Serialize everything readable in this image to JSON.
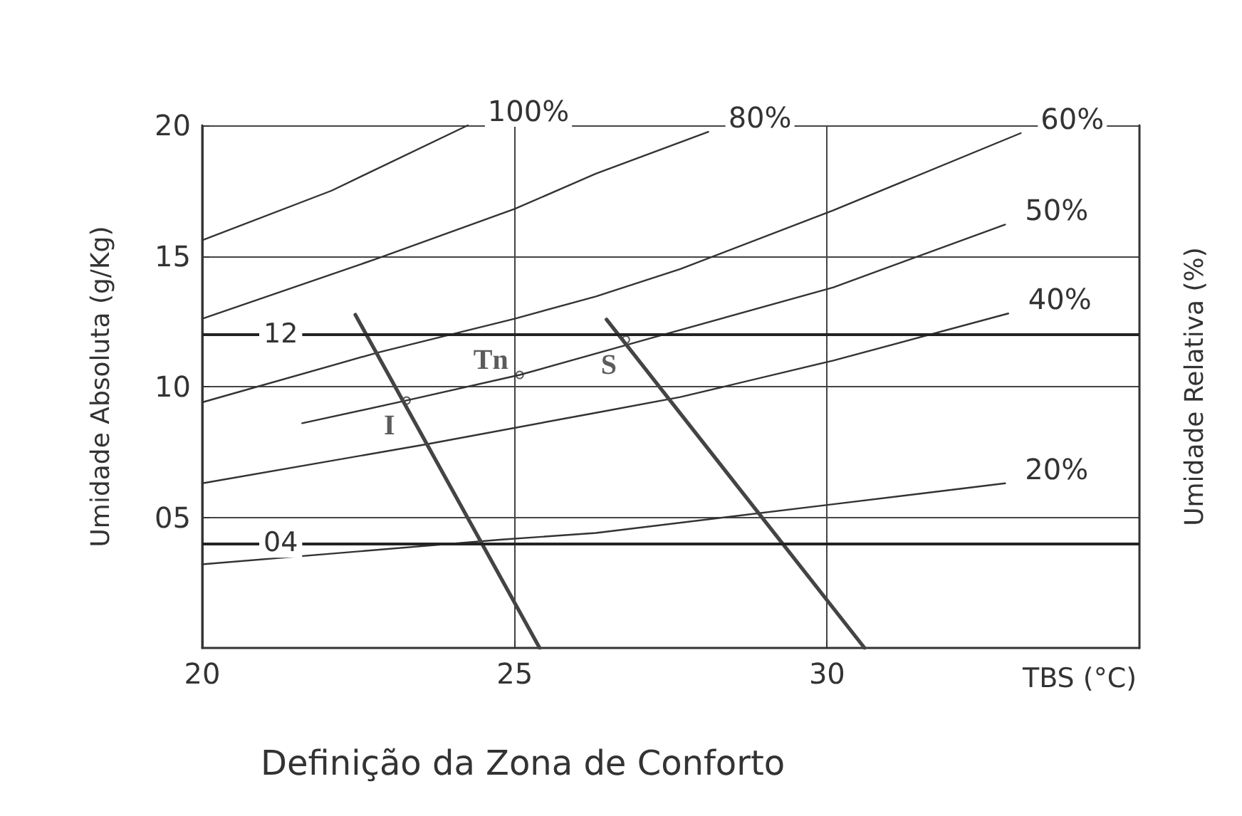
{
  "chart_data": {
    "type": "line",
    "title": "Definição da Zona de Conforto",
    "xlabel": "TBS (°C)",
    "ylabel": "Umidade Absoluta (g/Kg)",
    "y2label": "Umidade Relativa (%)",
    "xlim": [
      20,
      35
    ],
    "xticks": [
      20,
      25,
      30
    ],
    "ylim": [
      0,
      20
    ],
    "yticks": [
      {
        "value": 5,
        "label": "05"
      },
      10,
      15,
      20
    ],
    "grid": true,
    "legend": false,
    "marker": "none",
    "line_style": "solid",
    "series": [
      {
        "name": "100%",
        "color": "#333333",
        "x": [
          20,
          22.07,
          24.25
        ],
        "values": [
          15.6,
          17.5,
          20
        ]
      },
      {
        "name": "80%",
        "color": "#333333",
        "x": [
          20,
          22.8,
          25,
          26.3,
          28.1
        ],
        "values": [
          12.6,
          14.9,
          16.8,
          18.15,
          19.75
        ]
      },
      {
        "name": "60%",
        "color": "#333333",
        "x": [
          20,
          22.8,
          25,
          26.3,
          27.65,
          30.1,
          33.1
        ],
        "values": [
          9.4,
          11.3,
          12.6,
          13.45,
          14.5,
          16.75,
          19.7
        ]
      },
      {
        "name": "50%",
        "color": "#333333",
        "x": [
          21.6,
          23.27,
          25.08,
          27.1,
          30.1,
          32.85
        ],
        "values": [
          8.6,
          9.47,
          10.45,
          11.8,
          13.8,
          16.2
        ]
      },
      {
        "name": "40%",
        "color": "#333333",
        "x": [
          20,
          23.6,
          26.3,
          27.65,
          30.1,
          32.9
        ],
        "values": [
          6.3,
          7.8,
          9.0,
          9.6,
          11.0,
          12.8
        ]
      },
      {
        "name": "20%",
        "color": "#333333",
        "x": [
          20,
          24.8,
          26.3,
          30.1,
          32.85
        ],
        "values": [
          3.2,
          4.15,
          4.4,
          5.5,
          6.3
        ]
      },
      {
        "color": "#444444",
        "x": [
          22.45,
          25.4
        ],
        "values": [
          12.75,
          0
        ]
      },
      {
        "color": "#444444",
        "x": [
          26.47,
          30.6
        ],
        "values": [
          12.57,
          0
        ]
      }
    ],
    "ref_lines": [
      {
        "axis": "y",
        "value": 12,
        "label": "12",
        "color": "#222222"
      },
      {
        "axis": "y",
        "value": 4,
        "label": "04",
        "color": "#222222"
      }
    ],
    "annotations": [
      {
        "text": "I",
        "x": 23.27,
        "y": 9.47
      },
      {
        "text": "Tn",
        "x": 25.08,
        "y": 10.45
      },
      {
        "text": "S",
        "x": 26.78,
        "y": 11.8
      }
    ]
  }
}
